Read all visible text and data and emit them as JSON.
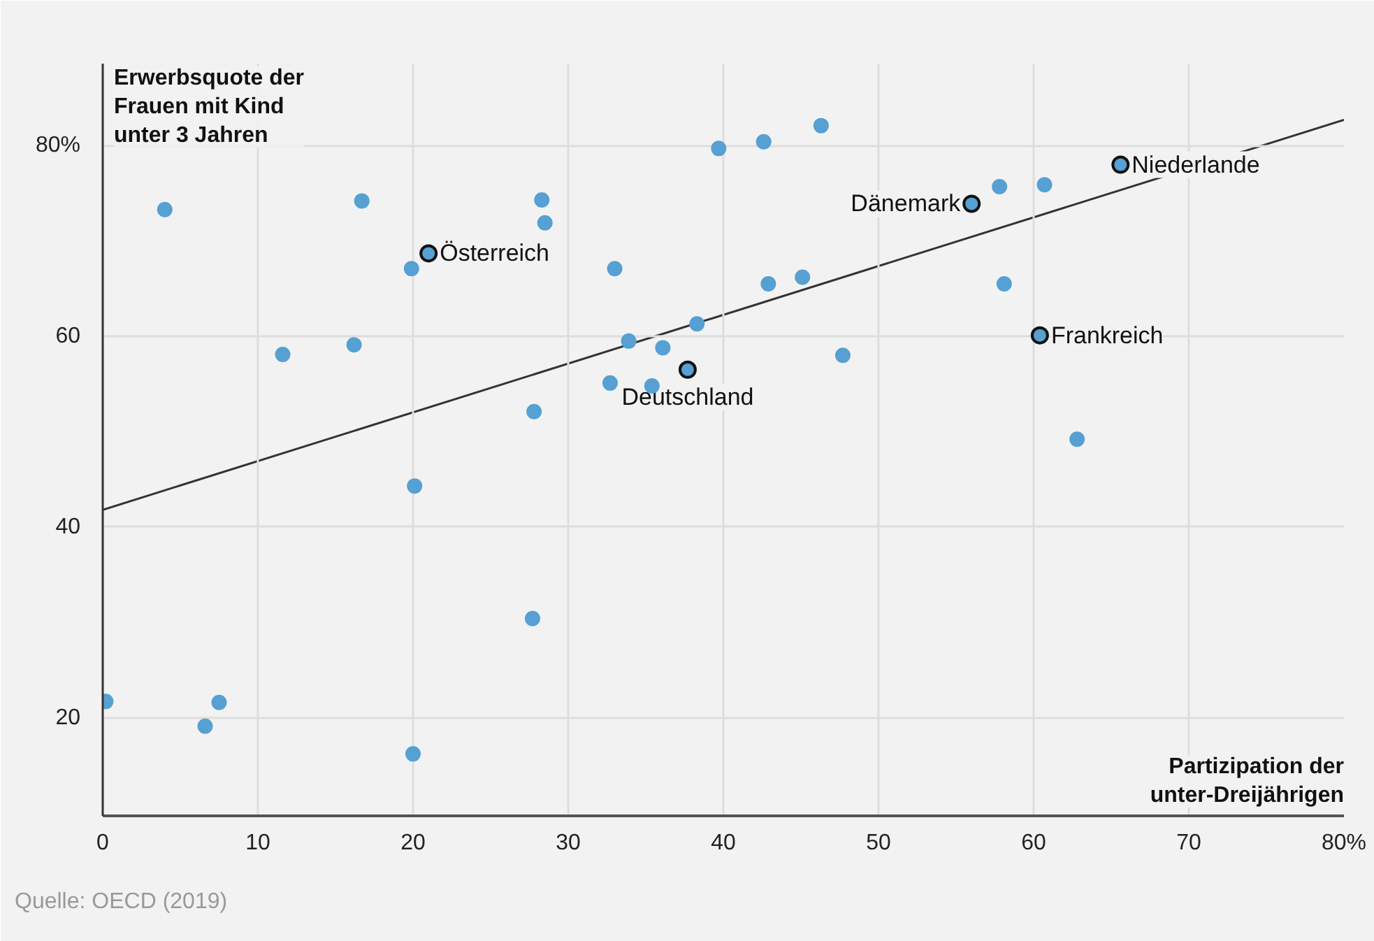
{
  "chart_data": {
    "type": "scatter",
    "xlabel": "Partizipation der\nunter-Dreijährigen",
    "ylabel": "Erwerbsquote der\nFrauen mit Kind\nunter 3 Jahren",
    "xlim": [
      0,
      80
    ],
    "ylim": [
      9.7,
      88.6
    ],
    "xticks": [
      0,
      10,
      20,
      30,
      40,
      50,
      60,
      70,
      {
        "value": 80,
        "label": "80%"
      }
    ],
    "yticks": [
      20,
      40,
      60,
      {
        "value": 80,
        "label": "80%"
      }
    ],
    "grid": true,
    "marker": "circle",
    "series": [
      {
        "color": "#56a0d3",
        "x": [
          4.0,
          16.7,
          28.3,
          28.5,
          21.0,
          19.9,
          33.0,
          39.7,
          38.3,
          11.6,
          16.2,
          33.9,
          36.1,
          37.7,
          32.7,
          35.4,
          27.8,
          42.6,
          46.3,
          65.6,
          57.8,
          60.7,
          56.0,
          42.9,
          45.1,
          58.1,
          60.4,
          47.7,
          62.8,
          20.1,
          27.7,
          0.2,
          7.5,
          6.6,
          20.0
        ],
        "values": [
          73.3,
          74.2,
          74.3,
          71.9,
          68.7,
          67.1,
          67.1,
          79.7,
          61.3,
          58.1,
          59.1,
          59.5,
          58.8,
          56.5,
          55.1,
          54.8,
          52.1,
          80.4,
          82.1,
          78.0,
          75.7,
          75.9,
          73.9,
          65.5,
          66.2,
          65.5,
          60.1,
          58.0,
          49.2,
          44.3,
          30.4,
          21.7,
          21.6,
          19.1,
          16.2
        ]
      },
      {
        "type": "line",
        "color": "#333333",
        "x": [
          0,
          80
        ],
        "values": [
          41.8,
          82.7
        ],
        "marker": "none",
        "line_style": "solid"
      }
    ],
    "annotations": [
      {
        "text": "Österreich",
        "x": 21.0,
        "y": 68.7
      },
      {
        "text": "Dänemark",
        "x": 56.0,
        "y": 73.9
      },
      {
        "text": "Niederlande",
        "x": 65.6,
        "y": 78.0
      },
      {
        "text": "Frankreich",
        "x": 60.4,
        "y": 60.1
      },
      {
        "text": "Deutschland",
        "x": 37.7,
        "y": 56.5
      },
      "Quelle: OECD (2019)"
    ]
  }
}
